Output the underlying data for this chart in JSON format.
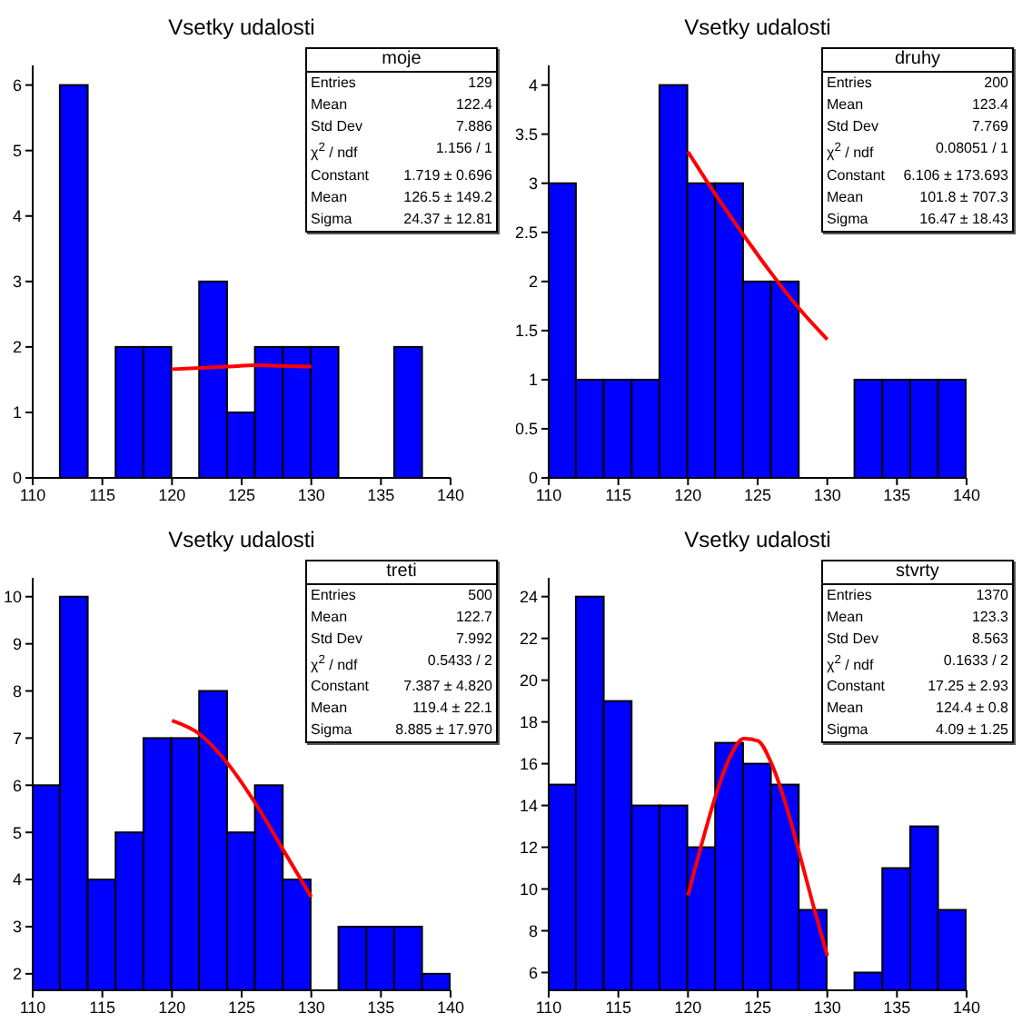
{
  "chart_data": [
    {
      "type": "histogram",
      "title": "Vsetky udalosti",
      "bins": [
        110,
        112,
        114,
        116,
        118,
        120,
        122,
        124,
        126,
        128,
        130,
        132,
        134,
        136,
        138,
        140
      ],
      "xlim": [
        110,
        140
      ],
      "xticks": [
        110,
        115,
        120,
        125,
        130,
        135,
        140
      ],
      "ylim": [
        0,
        6.3
      ],
      "yticks": [
        0,
        1,
        2,
        3,
        4,
        5,
        6
      ],
      "legend": false,
      "grid": false,
      "series": [
        {
          "color": "#0000ff",
          "values": [
            0,
            6,
            0,
            2,
            2,
            0,
            3,
            1,
            2,
            2,
            2,
            0,
            0,
            2,
            0
          ]
        },
        {
          "type": "line",
          "color": "#ff0000",
          "x": [
            120,
            122,
            124,
            126,
            128,
            130
          ],
          "values": [
            1.66,
            1.68,
            1.7,
            1.72,
            1.71,
            1.7
          ]
        }
      ],
      "annotations": [
        "moje",
        "Entries",
        "129",
        "Mean",
        "122.4",
        "Std Dev",
        "7.886",
        "χ$^{2}$ / ndf",
        "1.156 / 1",
        "Constant",
        "1.719 ± 0.696",
        "Mean",
        "126.5 ± 149.2",
        "Sigma",
        "24.37 ± 12.81"
      ]
    },
    {
      "type": "histogram",
      "title": "Vsetky udalosti",
      "bins": [
        110,
        112,
        114,
        116,
        118,
        120,
        122,
        124,
        126,
        128,
        130,
        132,
        134,
        136,
        138,
        140
      ],
      "xlim": [
        110,
        140
      ],
      "xticks": [
        110,
        115,
        120,
        125,
        130,
        135,
        140
      ],
      "ylim": [
        0,
        4.2
      ],
      "yticks": [
        0,
        0.5,
        1,
        1.5,
        2,
        2.5,
        3,
        3.5,
        4
      ],
      "legend": false,
      "grid": false,
      "series": [
        {
          "color": "#0000ff",
          "values": [
            3,
            1,
            1,
            1,
            4,
            3,
            3,
            2,
            2,
            0,
            null,
            1,
            1,
            1,
            1
          ]
        },
        {
          "type": "line",
          "color": "#ff0000",
          "x": [
            120,
            122,
            124,
            126,
            128,
            130
          ],
          "values": [
            3.32,
            2.88,
            2.47,
            2.08,
            1.72,
            1.41
          ]
        }
      ],
      "annotations": [
        "druhy",
        "Entries",
        "200",
        "Mean",
        "123.4",
        "Std Dev",
        "7.769",
        "χ$^{2}$ / ndf",
        "0.08051 / 1",
        "Constant",
        "6.106 ± 173.693",
        "Mean",
        "101.8 ± 707.3",
        "Sigma",
        "16.47 ± 18.43"
      ]
    },
    {
      "type": "histogram",
      "title": "Vsetky udalosti",
      "bins": [
        110,
        112,
        114,
        116,
        118,
        120,
        122,
        124,
        126,
        128,
        130,
        132,
        134,
        136,
        138,
        140
      ],
      "xlim": [
        110,
        140
      ],
      "xticks": [
        110,
        115,
        120,
        125,
        130,
        135,
        140
      ],
      "ylim": [
        1.65,
        10.4
      ],
      "yticks": [
        2,
        3,
        4,
        5,
        6,
        7,
        8,
        9,
        10
      ],
      "legend": false,
      "grid": false,
      "series": [
        {
          "color": "#0000ff",
          "values": [
            6,
            10,
            4,
            5,
            7,
            7,
            8,
            5,
            6,
            4,
            null,
            3,
            3,
            3,
            2
          ]
        },
        {
          "type": "line",
          "color": "#ff0000",
          "x": [
            120,
            122,
            124,
            126,
            128,
            130
          ],
          "values": [
            7.37,
            7.08,
            6.46,
            5.61,
            4.62,
            3.63
          ]
        }
      ],
      "annotations": [
        "treti",
        "Entries",
        "500",
        "Mean",
        "122.7",
        "Std Dev",
        "7.992",
        "χ$^{2}$ / ndf",
        "0.5433 / 2",
        "Constant",
        "7.387 ± 4.820",
        "Mean",
        "119.4 ± 22.1",
        "Sigma",
        "8.885 ± 17.970"
      ]
    },
    {
      "type": "histogram",
      "title": "Vsetky udalosti",
      "bins": [
        110,
        112,
        114,
        116,
        118,
        120,
        122,
        124,
        126,
        128,
        130,
        132,
        134,
        136,
        138,
        140
      ],
      "xlim": [
        110,
        140
      ],
      "xticks": [
        110,
        115,
        120,
        125,
        130,
        135,
        140
      ],
      "ylim": [
        5.15,
        24.9
      ],
      "yticks": [
        6,
        8,
        10,
        12,
        14,
        16,
        18,
        20,
        22,
        24
      ],
      "legend": false,
      "grid": false,
      "series": [
        {
          "color": "#0000ff",
          "values": [
            15,
            24,
            19,
            14,
            14,
            12,
            17,
            16,
            15,
            9,
            null,
            6,
            11,
            13,
            9
          ]
        },
        {
          "type": "line",
          "color": "#ff0000",
          "x": [
            120,
            121,
            122,
            123,
            124,
            125,
            126,
            127,
            128,
            129,
            130
          ],
          "values": [
            9.7,
            12.2,
            14.5,
            16.3,
            17.2,
            17.1,
            16,
            14.1,
            11.7,
            9.2,
            6.8
          ]
        }
      ],
      "annotations": [
        "stvrty",
        "Entries",
        "1370",
        "Mean",
        "123.3",
        "Std Dev",
        "8.563",
        "χ$^{2}$ / ndf",
        "0.1633 / 2",
        "Constant",
        "17.25 ± 2.93",
        "Mean",
        "124.4 ± 0.8",
        "Sigma",
        "4.09 ± 1.25"
      ]
    }
  ]
}
